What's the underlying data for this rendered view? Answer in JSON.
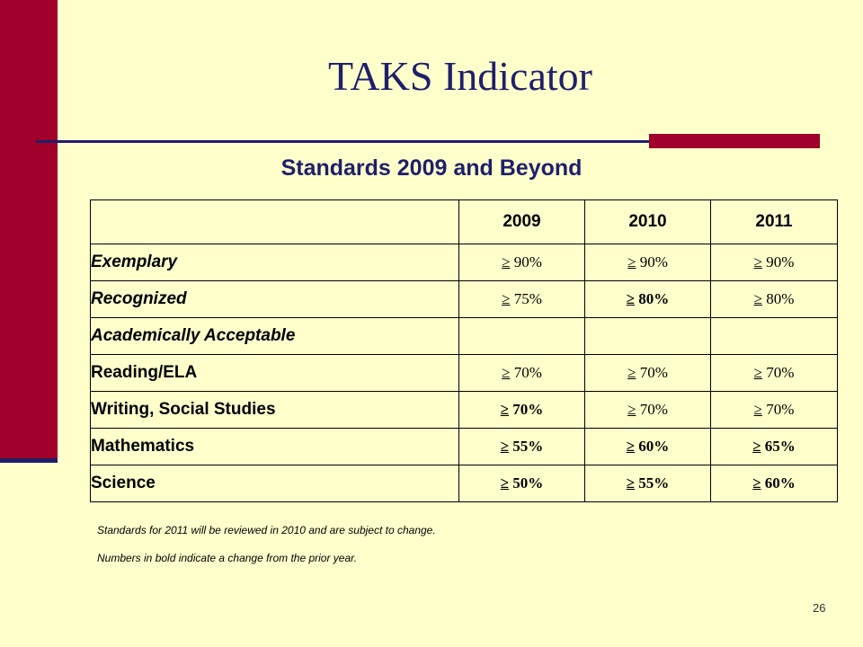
{
  "slide": {
    "title": "TAKS Indicator",
    "subtitle": "Standards 2009 and Beyond",
    "page_number": "26",
    "notes": [
      "Standards for 2011 will be reviewed in 2010 and are subject to change.",
      "Numbers in bold indicate a change from the prior year."
    ]
  },
  "table": {
    "headers": [
      "",
      "2009",
      "2010",
      "2011"
    ],
    "rows": [
      {
        "label": "Exemplary",
        "italic": true,
        "cells": [
          {
            "sym": "≥",
            "num": " 90%",
            "bold": false
          },
          {
            "sym": "≥",
            "num": " 90%",
            "bold": false
          },
          {
            "sym": "≥",
            "num": " 90%",
            "bold": false
          }
        ]
      },
      {
        "label": "Recognized",
        "italic": true,
        "cells": [
          {
            "sym": "≥",
            "num": " 75%",
            "bold": false
          },
          {
            "sym": "≥",
            "num": " 80%",
            "bold": true
          },
          {
            "sym": "≥",
            "num": " 80%",
            "bold": false
          }
        ]
      },
      {
        "label": "Academically Acceptable",
        "italic": true,
        "cells": [
          {
            "sym": "",
            "num": "",
            "bold": false
          },
          {
            "sym": "",
            "num": "",
            "bold": false
          },
          {
            "sym": "",
            "num": "",
            "bold": false
          }
        ]
      },
      {
        "label": "Reading/ELA",
        "italic": false,
        "cells": [
          {
            "sym": "≥",
            "num": " 70%",
            "bold": false
          },
          {
            "sym": "≥",
            "num": " 70%",
            "bold": false
          },
          {
            "sym": "≥",
            "num": " 70%",
            "bold": false
          }
        ]
      },
      {
        "label": "Writing, Social Studies",
        "italic": false,
        "cells": [
          {
            "sym": "≥",
            "num": " 70%",
            "bold": true
          },
          {
            "sym": "≥",
            "num": " 70%",
            "bold": false
          },
          {
            "sym": "≥",
            "num": " 70%",
            "bold": false
          }
        ]
      },
      {
        "label": "Mathematics",
        "italic": false,
        "cells": [
          {
            "sym": "≥",
            "num": " 55%",
            "bold": true
          },
          {
            "sym": "≥",
            "num": " 60%",
            "bold": true
          },
          {
            "sym": "≥",
            "num": " 65%",
            "bold": true
          }
        ]
      },
      {
        "label": "Science",
        "italic": false,
        "cells": [
          {
            "sym": "≥",
            "num": " 50%",
            "bold": true
          },
          {
            "sym": "≥",
            "num": " 55%",
            "bold": true
          },
          {
            "sym": "≥",
            "num": " 60%",
            "bold": true
          }
        ]
      }
    ]
  },
  "colors": {
    "background": "#FFFFCC",
    "accent_red": "#A0002A",
    "title_navy": "#1F1F6B"
  }
}
